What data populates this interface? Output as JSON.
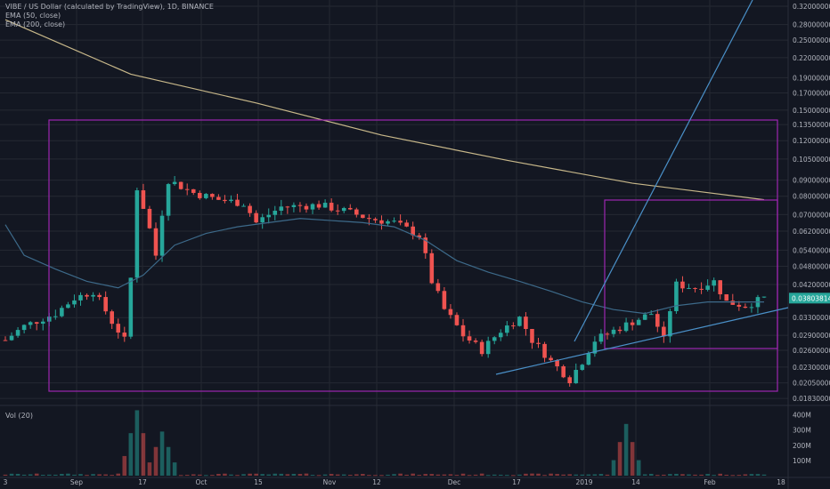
{
  "legend": {
    "title": "VIBE / US Dollar (calculated by TradingView), 1D, BINANCE",
    "ema50": "EMA (50, close)",
    "ema200": "EMA (200, close)"
  },
  "volume_label": "Vol (20)",
  "price_tag": "0.03803814",
  "colors": {
    "background": "#131722",
    "grid": "#242832",
    "up": "#26a69a",
    "down": "#ef5350",
    "ema50": "#3d6a8a",
    "ema200": "#c8b88a",
    "box": "#9c27b0",
    "trendline": "#4a90c8",
    "price_tag": "#26a69a",
    "axis_text": "#b2b5be"
  },
  "chart_data": {
    "type": "candlestick",
    "title": "VIBE / US Dollar (calculated by TradingView), 1D, BINANCE",
    "y_scale": "log",
    "ylim": [
      0.0175,
      0.335
    ],
    "price_ticks": [
      "0.32000000",
      "0.28000000",
      "0.25000000",
      "0.22000000",
      "0.19000000",
      "0.17000000",
      "0.15000000",
      "0.13500000",
      "0.12000000",
      "0.10500000",
      "0.09000000",
      "0.08000000",
      "0.07000000",
      "0.06200000",
      "0.05400000",
      "0.04800000",
      "0.04200000",
      "0.03300000",
      "0.02900000",
      "0.02600000",
      "0.02300000",
      "0.02050000",
      "0.01830000"
    ],
    "volume_ticks": [
      "400M",
      "300M",
      "200M",
      "100M"
    ],
    "x_labels": [
      "3",
      "Sep",
      "17",
      "Oct",
      "15",
      "Nov",
      "12",
      "Dec",
      "17",
      "2019",
      "14",
      "Feb",
      "18"
    ],
    "current_price": 0.03803814,
    "series": [
      {
        "name": "EMA (50, close)",
        "x": [
          0,
          3,
          8,
          13,
          18,
          22,
          27,
          32,
          37,
          42,
          47,
          52,
          57,
          62,
          67,
          72,
          77,
          82,
          87,
          92,
          97,
          102,
          107,
          112,
          117,
          121
        ],
        "values": [
          0.065,
          0.052,
          0.047,
          0.043,
          0.041,
          0.045,
          0.056,
          0.061,
          0.064,
          0.066,
          0.068,
          0.067,
          0.066,
          0.064,
          0.058,
          0.05,
          0.046,
          0.043,
          0.04,
          0.037,
          0.035,
          0.034,
          0.036,
          0.037,
          0.037,
          0.037
        ]
      },
      {
        "name": "EMA (200, close)",
        "x": [
          0,
          20,
          40,
          60,
          80,
          100,
          121
        ],
        "values": [
          0.29,
          0.195,
          0.158,
          0.125,
          0.104,
          0.088,
          0.078
        ]
      }
    ],
    "volume_x_peaks": {
      "x": [
        21,
        25,
        99
      ],
      "values": [
        430,
        290,
        340
      ]
    }
  }
}
